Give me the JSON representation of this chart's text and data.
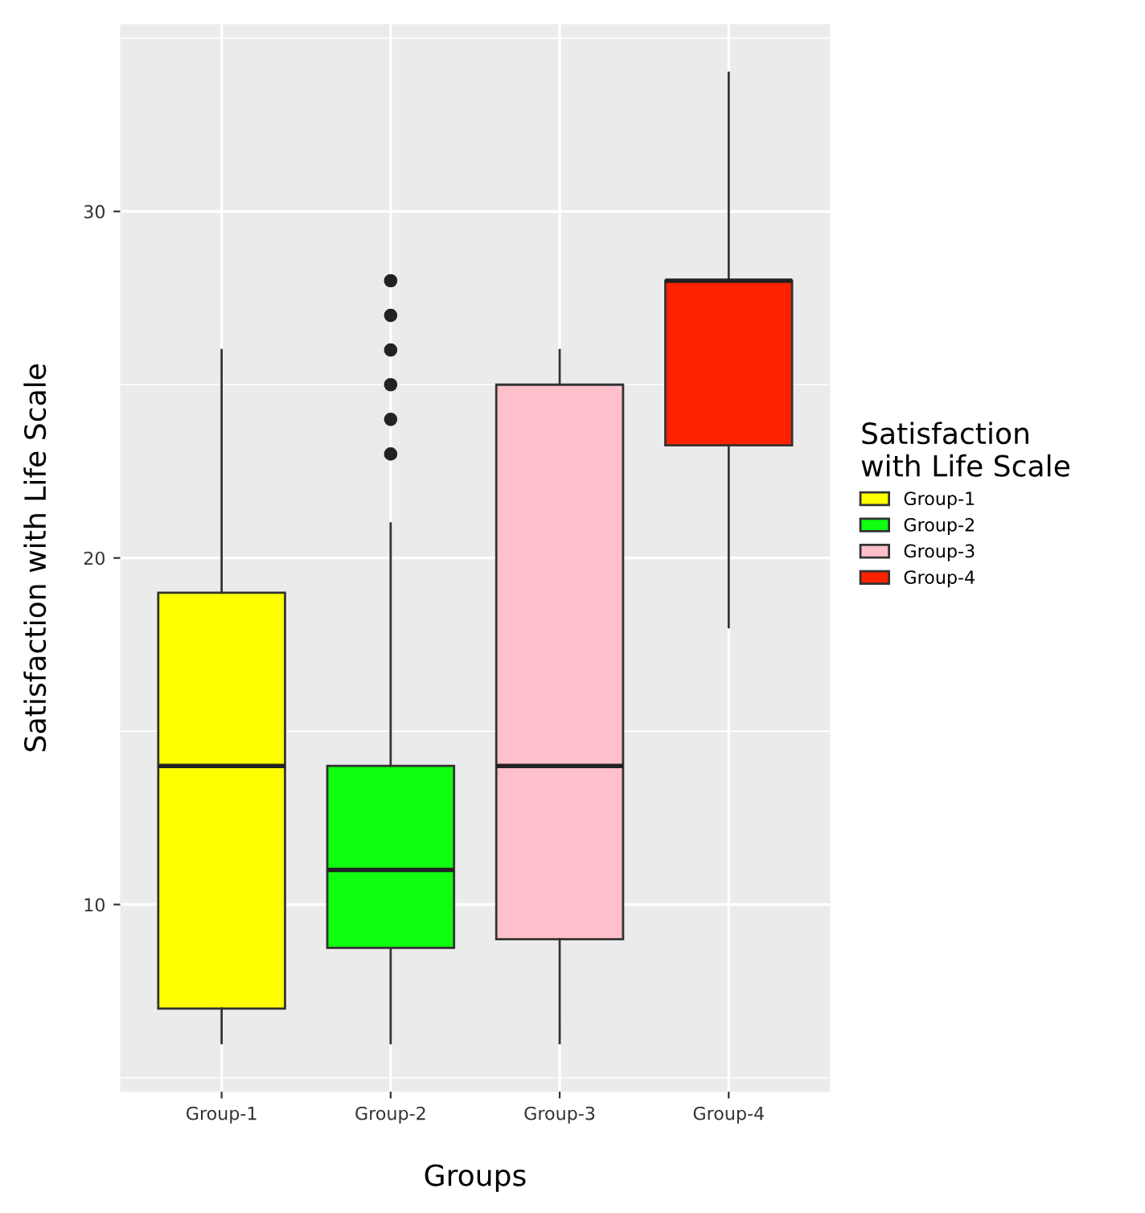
{
  "chart_data": {
    "type": "box",
    "xlabel": "Groups",
    "ylabel": "Satisfaction with Life Scale",
    "legend_title": "Satisfaction\nwith Life Scale",
    "categories": [
      "Group-1",
      "Group-2",
      "Group-3",
      "Group-4"
    ],
    "series": [
      {
        "name": "Group-1",
        "color": "#ffff00",
        "boxes": [
          {
            "low": 6,
            "q1": 7,
            "median": 14,
            "q3": 19,
            "high": 26
          },
          null,
          null,
          null
        ]
      },
      {
        "name": "Group-2",
        "color": "#10ff10",
        "boxes": [
          null,
          {
            "low": 6,
            "q1": 8.75,
            "median": 11,
            "q3": 14,
            "high": 21,
            "outliers": [
              23,
              24,
              25,
              26,
              27,
              28
            ]
          },
          null,
          null
        ]
      },
      {
        "name": "Group-3",
        "color": "#ffc0cb",
        "boxes": [
          null,
          null,
          {
            "low": 6,
            "q1": 9,
            "median": 14,
            "q3": 25,
            "high": 26
          },
          null
        ]
      },
      {
        "name": "Group-4",
        "color": "#ff2200",
        "boxes": [
          null,
          null,
          null,
          {
            "low": 18,
            "q1": 23.25,
            "median": 28,
            "q3": 28,
            "high": 34
          }
        ]
      }
    ],
    "ylim": [
      4.6,
      35.4
    ],
    "yticks": [
      {
        "value": 5,
        "label": null
      },
      10,
      {
        "value": 15,
        "label": null
      },
      20,
      {
        "value": 25,
        "label": null
      },
      30,
      {
        "value": 35,
        "label": null
      }
    ],
    "grid": true,
    "legend": "right"
  }
}
